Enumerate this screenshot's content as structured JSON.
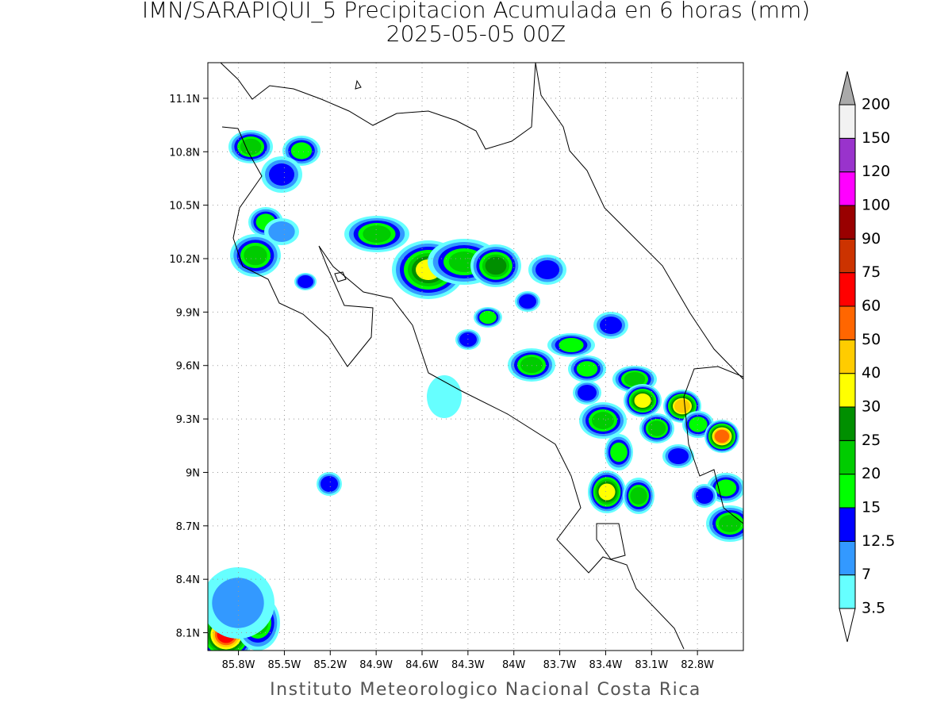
{
  "map": {
    "title": "IMN/SARAPIQUI_5 Precipitacion Acumulada en 6 horas (mm)",
    "subtitle": "2025-05-05 00Z",
    "footer": "Instituto Meteorologico Nacional Costa Rica",
    "xlim": [
      -86.0,
      -82.5
    ],
    "ylim": [
      8.0,
      11.3
    ],
    "xticks": [
      {
        "value": -85.8,
        "label": "85.8W"
      },
      {
        "value": -85.5,
        "label": "85.5W"
      },
      {
        "value": -85.2,
        "label": "85.2W"
      },
      {
        "value": -84.9,
        "label": "84.9W"
      },
      {
        "value": -84.6,
        "label": "84.6W"
      },
      {
        "value": -84.3,
        "label": "84.3W"
      },
      {
        "value": -84.0,
        "label": "84W"
      },
      {
        "value": -83.7,
        "label": "83.7W"
      },
      {
        "value": -83.4,
        "label": "83.4W"
      },
      {
        "value": -83.1,
        "label": "83.1W"
      },
      {
        "value": -82.8,
        "label": "82.8W"
      }
    ],
    "yticks": [
      {
        "value": 8.1,
        "label": "8.1N"
      },
      {
        "value": 8.4,
        "label": "8.4N"
      },
      {
        "value": 8.7,
        "label": "8.7N"
      },
      {
        "value": 9.0,
        "label": "9N"
      },
      {
        "value": 9.3,
        "label": "9.3N"
      },
      {
        "value": 9.6,
        "label": "9.6N"
      },
      {
        "value": 9.9,
        "label": "9.9N"
      },
      {
        "value": 10.2,
        "label": "10.2N"
      },
      {
        "value": 10.5,
        "label": "10.5N"
      },
      {
        "value": 10.8,
        "label": "10.8N"
      },
      {
        "value": 11.1,
        "label": "11.1N"
      }
    ],
    "grid": true,
    "colorbar": {
      "levels": [
        3.5,
        7,
        12.5,
        15,
        20,
        25,
        30,
        40,
        50,
        60,
        75,
        90,
        100,
        120,
        150,
        200
      ],
      "colors": [
        "#66ffff",
        "#3399ff",
        "#0000ff",
        "#00ff00",
        "#00cc00",
        "#008f00",
        "#ffff00",
        "#ffcc00",
        "#ff6600",
        "#ff0000",
        "#cc3300",
        "#990000",
        "#ff00ff",
        "#9933cc",
        "#f2f2f2"
      ],
      "under_color": "#ffffff",
      "over_color": "#aaaaaa"
    }
  }
}
